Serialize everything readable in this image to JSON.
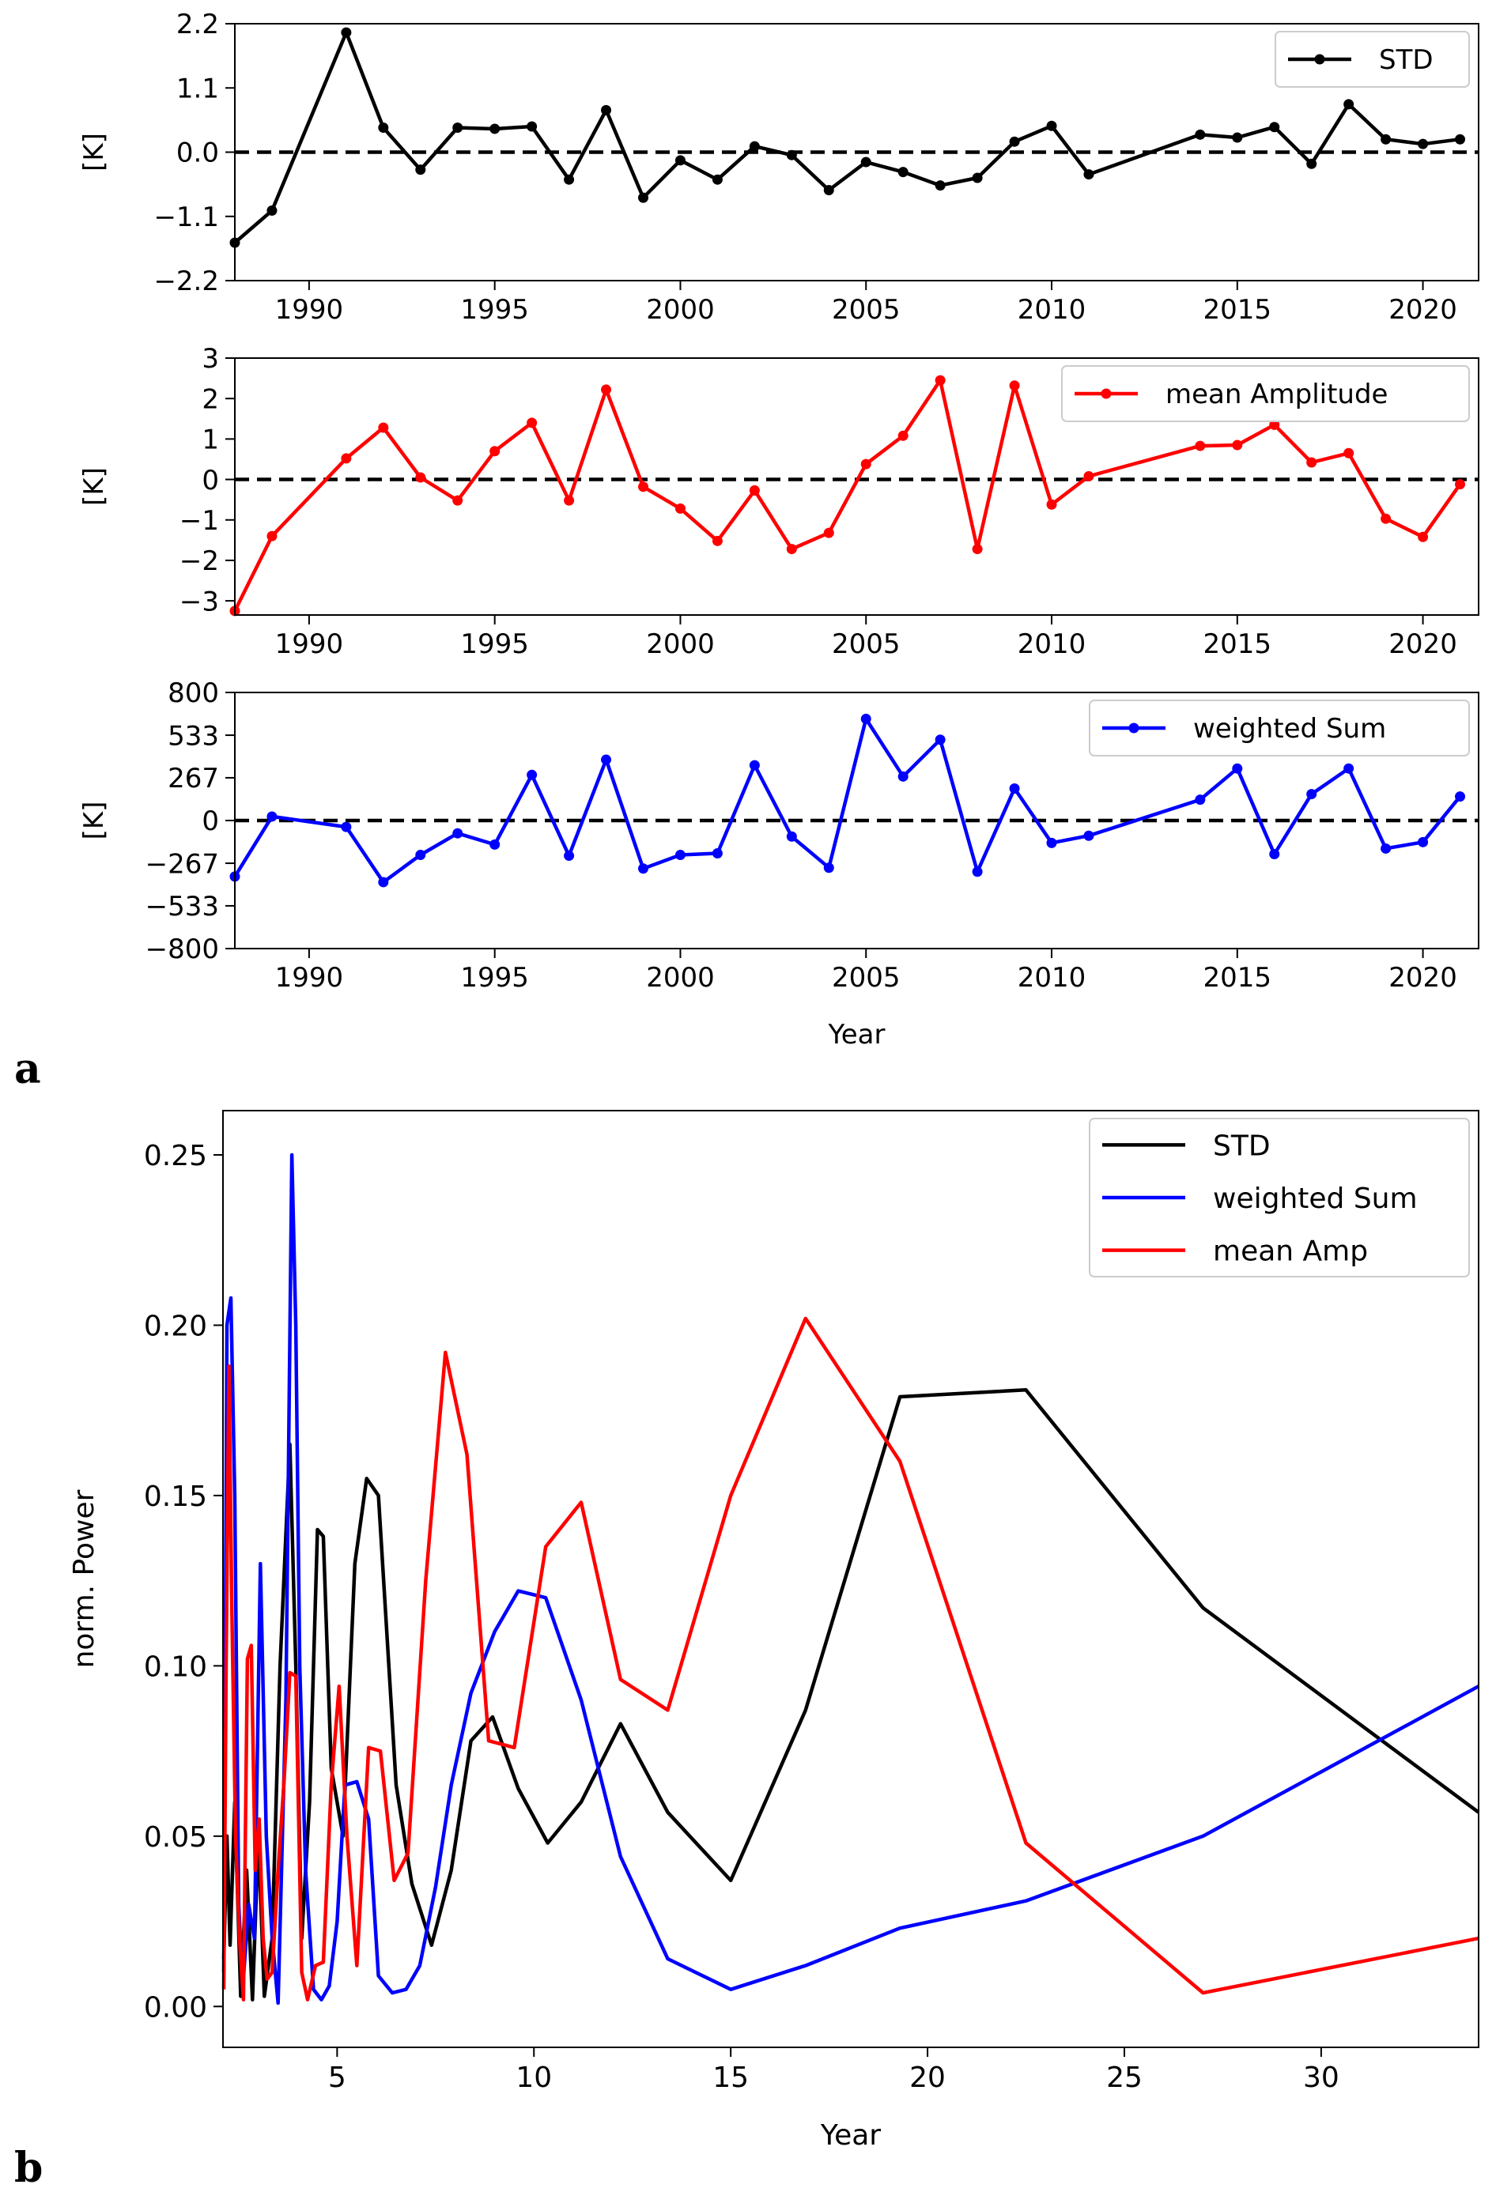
{
  "panel_labels": [
    "a",
    "b"
  ],
  "chart_data": [
    {
      "type": "line",
      "title": "",
      "xlabel": "",
      "ylabel": "[K]",
      "xlim": [
        1988,
        2021.5
      ],
      "ylim": [
        -2.2,
        2.2
      ],
      "xticks": [
        1990,
        1995,
        2000,
        2005,
        2010,
        2015,
        2020
      ],
      "yticks": [
        -2.2,
        -1.1,
        0.0,
        1.1,
        2.2
      ],
      "ytick_labels": [
        "−2.2",
        "−1.1",
        "0.0",
        "1.1",
        "2.2"
      ],
      "zero_line": true,
      "grid": false,
      "legend": "top-right",
      "series": [
        {
          "name": "STD",
          "color": "#000000",
          "markers": true,
          "x": [
            1988,
            1989,
            1991,
            1992,
            1993,
            1994,
            1995,
            1996,
            1997,
            1998,
            1999,
            2000,
            2001,
            2002,
            2003,
            2004,
            2005,
            2006,
            2007,
            2008,
            2009,
            2010,
            2011,
            2014,
            2015,
            2016,
            2017,
            2018,
            2019,
            2020,
            2021
          ],
          "y": [
            -1.55,
            -1.0,
            2.05,
            0.42,
            -0.3,
            0.42,
            0.4,
            0.44,
            -0.47,
            0.72,
            -0.78,
            -0.14,
            -0.47,
            0.1,
            -0.05,
            -0.65,
            -0.17,
            -0.34,
            -0.57,
            -0.44,
            0.18,
            0.45,
            -0.38,
            0.3,
            0.25,
            0.43,
            -0.2,
            0.82,
            0.22,
            0.14,
            0.22
          ]
        }
      ]
    },
    {
      "type": "line",
      "title": "",
      "xlabel": "",
      "ylabel": "[K]",
      "xlim": [
        1988,
        2021.5
      ],
      "ylim": [
        -3.35,
        3
      ],
      "xticks": [
        1990,
        1995,
        2000,
        2005,
        2010,
        2015,
        2020
      ],
      "yticks": [
        -3,
        -2,
        -1,
        0,
        1,
        2,
        3
      ],
      "ytick_labels": [
        "−3",
        "−2",
        "−1",
        "0",
        "1",
        "2",
        "3"
      ],
      "zero_line": true,
      "grid": false,
      "legend": "top-right",
      "series": [
        {
          "name": "mean Amplitude",
          "color": "#ff0000",
          "markers": true,
          "x": [
            1988,
            1989,
            1991,
            1992,
            1993,
            1994,
            1995,
            1996,
            1997,
            1998,
            1999,
            2000,
            2001,
            2002,
            2003,
            2004,
            2005,
            2006,
            2007,
            2008,
            2009,
            2010,
            2011,
            2014,
            2015,
            2016,
            2017,
            2018,
            2019,
            2020,
            2021
          ],
          "y": [
            -3.25,
            -1.4,
            0.52,
            1.28,
            0.05,
            -0.52,
            0.7,
            1.4,
            -0.52,
            2.22,
            -0.18,
            -0.72,
            -1.52,
            -0.27,
            -1.72,
            -1.32,
            0.38,
            1.08,
            2.45,
            -1.72,
            2.32,
            -0.62,
            0.08,
            0.83,
            0.85,
            1.35,
            0.42,
            0.65,
            -0.97,
            -1.42,
            -0.12
          ]
        }
      ]
    },
    {
      "type": "line",
      "title": "",
      "xlabel": "Year",
      "ylabel": "[K]",
      "xlim": [
        1988,
        2021.5
      ],
      "ylim": [
        -800,
        800
      ],
      "xticks": [
        1990,
        1995,
        2000,
        2005,
        2010,
        2015,
        2020
      ],
      "yticks": [
        -800,
        -533,
        -267,
        0,
        267,
        533,
        800
      ],
      "ytick_labels": [
        "−800",
        "−533",
        "−267",
        "0",
        "267",
        "533",
        "800"
      ],
      "zero_line": true,
      "grid": false,
      "legend": "top-right",
      "series": [
        {
          "name": "weighted Sum",
          "color": "#0000ff",
          "markers": true,
          "x": [
            1988,
            1989,
            1991,
            1992,
            1993,
            1994,
            1995,
            1996,
            1997,
            1998,
            1999,
            2000,
            2001,
            2002,
            2003,
            2004,
            2005,
            2006,
            2007,
            2008,
            2009,
            2010,
            2011,
            2014,
            2015,
            2016,
            2017,
            2018,
            2019,
            2020,
            2021
          ],
          "y": [
            -350,
            25,
            -40,
            -385,
            -215,
            -80,
            -150,
            285,
            -220,
            380,
            -300,
            -215,
            -205,
            345,
            -100,
            -295,
            635,
            275,
            505,
            -320,
            200,
            -140,
            -95,
            130,
            325,
            -210,
            165,
            325,
            -175,
            -135,
            150
          ]
        }
      ]
    },
    {
      "type": "line",
      "title": "",
      "xlabel": "Year",
      "ylabel": "norm. Power",
      "xlim": [
        2.1,
        34
      ],
      "ylim": [
        -0.012,
        0.263
      ],
      "xticks": [
        5,
        10,
        15,
        20,
        25,
        30
      ],
      "yticks": [
        0.0,
        0.05,
        0.1,
        0.15,
        0.2,
        0.25
      ],
      "ytick_labels": [
        "0.00",
        "0.05",
        "0.10",
        "0.15",
        "0.20",
        "0.25"
      ],
      "zero_line": false,
      "grid": false,
      "legend": "top-right",
      "series": [
        {
          "name": "STD",
          "color": "#000000",
          "markers": false,
          "x": [
            2.12,
            2.2,
            2.28,
            2.4,
            2.55,
            2.7,
            2.85,
            3.0,
            3.15,
            3.35,
            3.55,
            3.8,
            3.95,
            4.1,
            4.3,
            4.5,
            4.65,
            4.85,
            5.15,
            5.45,
            5.75,
            6.05,
            6.5,
            6.9,
            7.4,
            7.9,
            8.4,
            8.95,
            9.6,
            10.35,
            11.2,
            12.2,
            13.4,
            15.0,
            16.9,
            19.3,
            22.5,
            27.0,
            34.0
          ],
          "x_": null,
          "y": [
            0.014,
            0.05,
            0.018,
            0.06,
            0.003,
            0.04,
            0.002,
            0.05,
            0.003,
            0.02,
            0.1,
            0.165,
            0.1,
            0.02,
            0.06,
            0.14,
            0.138,
            0.07,
            0.05,
            0.13,
            0.155,
            0.15,
            0.065,
            0.036,
            0.018,
            0.04,
            0.078,
            0.085,
            0.064,
            0.048,
            0.06,
            0.083,
            0.057,
            0.037,
            0.087,
            0.179,
            0.181,
            0.117,
            0.057
          ]
        },
        {
          "name": "weighted Sum",
          "color": "#0000ff",
          "markers": false,
          "x": [
            2.12,
            2.2,
            2.3,
            2.4,
            2.5,
            2.6,
            2.75,
            2.9,
            3.05,
            3.2,
            3.35,
            3.5,
            3.7,
            3.85,
            3.95,
            4.05,
            4.2,
            4.4,
            4.6,
            4.8,
            5.0,
            5.2,
            5.5,
            5.8,
            6.05,
            6.4,
            6.75,
            7.1,
            7.5,
            7.9,
            8.4,
            9.0,
            9.6,
            10.3,
            11.2,
            12.2,
            13.4,
            15.0,
            16.9,
            19.3,
            22.5,
            27.0,
            34.0
          ],
          "y": [
            0.01,
            0.2,
            0.208,
            0.15,
            0.03,
            0.005,
            0.03,
            0.02,
            0.13,
            0.05,
            0.02,
            0.001,
            0.09,
            0.25,
            0.2,
            0.1,
            0.04,
            0.005,
            0.002,
            0.006,
            0.025,
            0.065,
            0.066,
            0.055,
            0.009,
            0.004,
            0.005,
            0.012,
            0.035,
            0.065,
            0.092,
            0.11,
            0.122,
            0.12,
            0.09,
            0.044,
            0.014,
            0.005,
            0.012,
            0.023,
            0.031,
            0.05,
            0.094
          ]
        },
        {
          "name": "mean Amp",
          "color": "#ff0000",
          "markers": false,
          "x": [
            2.12,
            2.18,
            2.25,
            2.32,
            2.42,
            2.52,
            2.62,
            2.72,
            2.82,
            2.92,
            3.02,
            3.12,
            3.22,
            3.35,
            3.5,
            3.65,
            3.8,
            3.95,
            4.1,
            4.25,
            4.45,
            4.65,
            4.85,
            5.05,
            5.25,
            5.5,
            5.8,
            6.1,
            6.45,
            6.8,
            7.25,
            7.75,
            8.3,
            8.85,
            9.5,
            10.3,
            11.2,
            12.2,
            13.4,
            15.0,
            16.9,
            19.3,
            22.5,
            27.0,
            34.0
          ],
          "y": [
            0.005,
            0.1,
            0.188,
            0.12,
            0.05,
            0.02,
            0.002,
            0.102,
            0.106,
            0.04,
            0.055,
            0.02,
            0.008,
            0.01,
            0.04,
            0.066,
            0.098,
            0.097,
            0.01,
            0.002,
            0.012,
            0.013,
            0.065,
            0.094,
            0.05,
            0.012,
            0.076,
            0.075,
            0.037,
            0.045,
            0.125,
            0.192,
            0.162,
            0.078,
            0.076,
            0.135,
            0.148,
            0.096,
            0.087,
            0.15,
            0.202,
            0.16,
            0.048,
            0.004,
            0.02
          ]
        }
      ]
    }
  ]
}
